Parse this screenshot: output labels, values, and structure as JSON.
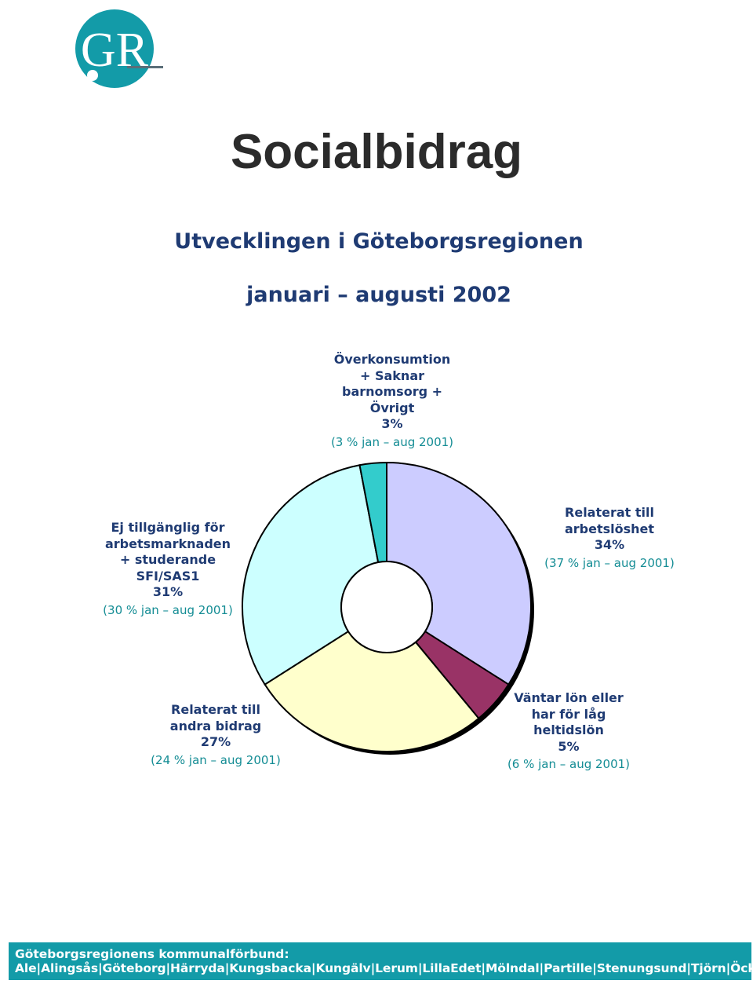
{
  "logo": {
    "text": "GR",
    "color": "#139ba8"
  },
  "title": "Socialbidrag",
  "subtitle_1": "Utvecklingen i Göteborgsregionen",
  "subtitle_2": "januari – augusti 2002",
  "chart_data": {
    "type": "pie",
    "style": "donut",
    "title": "",
    "labels": [
      "Relaterat till arbetslöshet",
      "Väntar lön eller har för låg heltidslön",
      "Relaterat till andra bidrag",
      "Ej tillgänglig för arbetsmarknaden + studerande SFI/SAS1",
      "Överkonsumtion + Saknar barnomsorg + Övrigt"
    ],
    "values": [
      34,
      5,
      27,
      31,
      3
    ],
    "previous_values": [
      37,
      6,
      24,
      30,
      3
    ],
    "colors": [
      "#ccccff",
      "#993366",
      "#ffffcc",
      "#ccffff",
      "#33cccc"
    ]
  },
  "labels": {
    "arbetsloshet": {
      "lines": [
        "Relaterat till",
        "arbetslöshet"
      ],
      "pct": "34%",
      "prev": "(37 % jan – aug 2001)"
    },
    "lon": {
      "lines": [
        "Väntar lön eller",
        "har för låg",
        "heltidslön"
      ],
      "pct": "5%",
      "prev": "(6 % jan – aug 2001)"
    },
    "andra": {
      "lines": [
        "Relaterat till",
        "andra bidrag"
      ],
      "pct": "27%",
      "prev": "(24 % jan – aug 2001)"
    },
    "ej": {
      "lines": [
        "Ej tillgänglig för",
        "arbetsmarknaden",
        "+ studerande",
        "SFI/SAS1"
      ],
      "pct": "31%",
      "prev": "(30 % jan – aug 2001)"
    },
    "ovrigt": {
      "lines": [
        "Överkonsumtion",
        "+ Saknar",
        "barnomsorg +",
        "Övrigt"
      ],
      "pct": "3%",
      "prev": "(3 % jan – aug 2001)"
    }
  },
  "footer": {
    "line1": "Göteborgsregionens kommunalförbund:",
    "line2": "Ale|Alingsås|Göteborg|Härryda|Kungsbacka|Kungälv|Lerum|LillaEdet|Mölndal|Partille|Stenungsund|Tjörn|Öckerö"
  }
}
